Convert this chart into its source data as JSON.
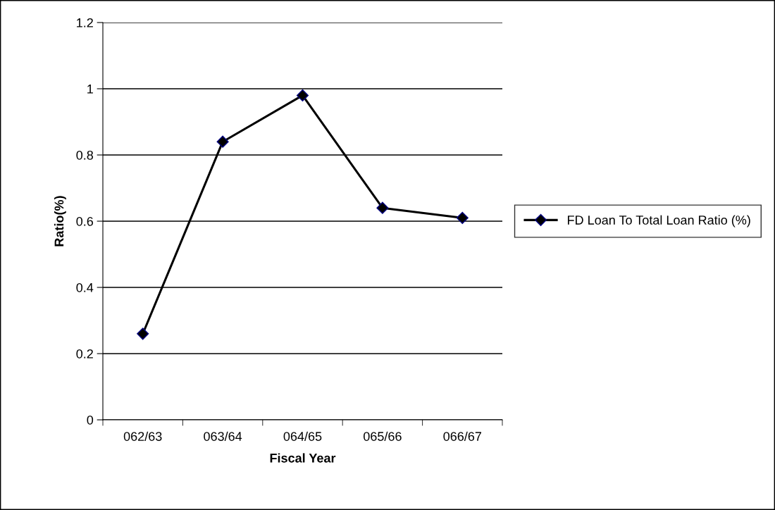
{
  "chart_data": {
    "type": "line",
    "xlabel": "Fiscal Year",
    "ylabel": "Ratio(%)",
    "categories": [
      "062/63",
      "063/64",
      "064/65",
      "065/66",
      "066/67"
    ],
    "series": [
      {
        "name": "FD Loan To Total Loan Ratio (%)",
        "color": "#000000",
        "values": [
          0.26,
          0.84,
          0.98,
          0.64,
          0.61
        ]
      }
    ],
    "ylim": [
      0,
      1.2
    ],
    "yticks": [
      0,
      0.2,
      0.4,
      0.6,
      0.8,
      1,
      1.2
    ],
    "grid": "y",
    "legend": "right",
    "marker": "diamond",
    "line_style": "solid"
  }
}
